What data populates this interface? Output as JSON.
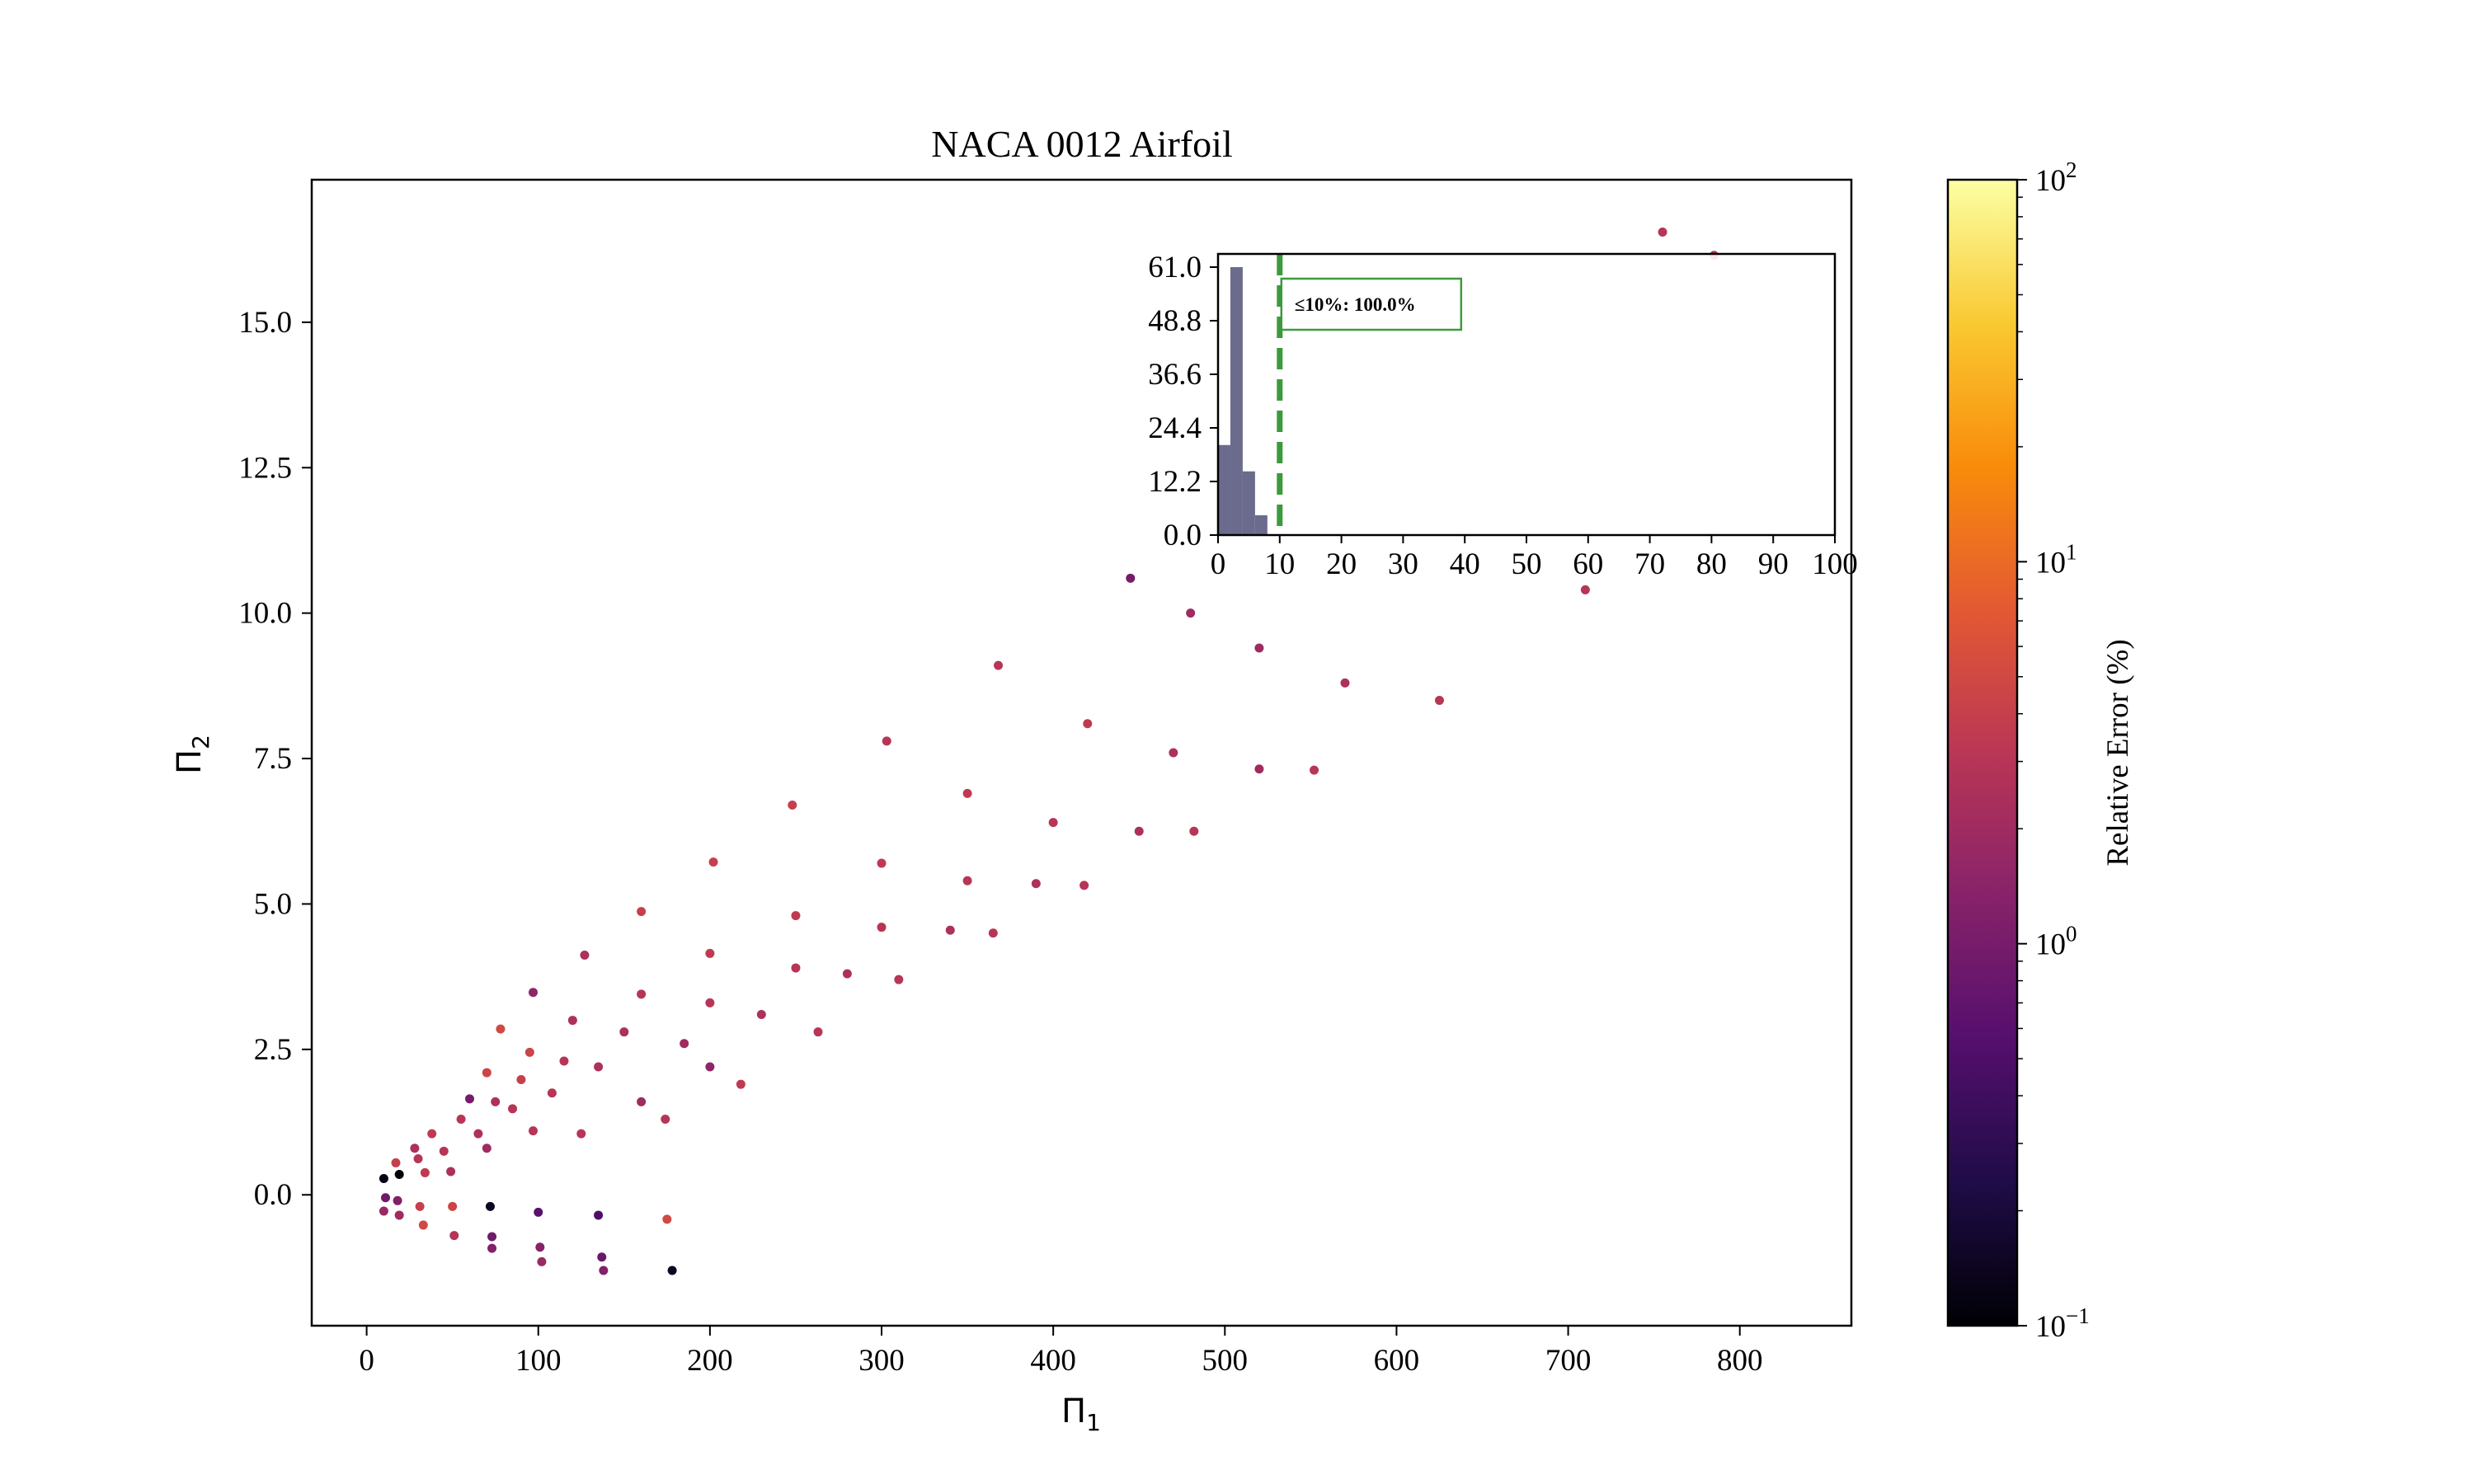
{
  "chart_data": {
    "type": "scatter",
    "title": "NACA 0012 Airfoil",
    "xlabel": "Π",
    "xlabel_sub": "1",
    "ylabel": "Π",
    "ylabel_sub": "2",
    "xlim": [
      -32,
      865
    ],
    "ylim": [
      -2.25,
      17.45
    ],
    "xticks": [
      "0",
      "100",
      "200",
      "300",
      "400",
      "500",
      "600",
      "700",
      "800"
    ],
    "xtick_values": [
      0,
      100,
      200,
      300,
      400,
      500,
      600,
      700,
      800
    ],
    "yticks": [
      "0.0",
      "2.5",
      "5.0",
      "7.5",
      "10.0",
      "12.5",
      "15.0"
    ],
    "ytick_values": [
      0,
      2.5,
      5,
      7.5,
      10,
      12.5,
      15
    ],
    "grid": false,
    "colormap": "inferno",
    "colorbar": {
      "label": "Relative Error (%)",
      "scale": "log",
      "range": [
        0.1,
        100
      ],
      "tick_bases": [
        "10",
        "10",
        "10",
        "10"
      ],
      "tick_exponents": [
        "−1",
        "0",
        "1",
        "2"
      ],
      "tick_values": [
        0.1,
        1,
        10,
        100
      ]
    },
    "series": [
      {
        "points": [
          [
            10,
            0.28,
            0.12
          ],
          [
            11,
            -0.05,
            0.9
          ],
          [
            10,
            -0.28,
            1.8
          ],
          [
            17,
            0.55,
            4
          ],
          [
            19,
            0.35,
            0.1
          ],
          [
            18,
            -0.1,
            1.2
          ],
          [
            19,
            -0.35,
            2
          ],
          [
            28,
            0.8,
            2.5
          ],
          [
            30,
            0.62,
            3
          ],
          [
            34,
            0.38,
            3.5
          ],
          [
            31,
            -0.2,
            4
          ],
          [
            33,
            -0.52,
            5
          ],
          [
            38,
            1.05,
            3.5
          ],
          [
            45,
            0.75,
            3
          ],
          [
            49,
            0.4,
            2.5
          ],
          [
            50,
            -0.2,
            4.5
          ],
          [
            51,
            -0.7,
            3
          ],
          [
            55,
            1.3,
            3
          ],
          [
            65,
            1.05,
            2.5
          ],
          [
            70,
            0.8,
            2
          ],
          [
            72,
            -0.2,
            0.15
          ],
          [
            73,
            -0.72,
            0.9
          ],
          [
            73,
            -0.92,
            1.2
          ],
          [
            60,
            1.65,
            1
          ],
          [
            75,
            1.6,
            2.5
          ],
          [
            85,
            1.48,
            3
          ],
          [
            97,
            1.1,
            3
          ],
          [
            100,
            -0.3,
            0.6
          ],
          [
            101,
            -0.9,
            1.3
          ],
          [
            102,
            -1.15,
            1.8
          ],
          [
            70,
            2.1,
            4.5
          ],
          [
            90,
            1.98,
            4
          ],
          [
            108,
            1.75,
            3
          ],
          [
            125,
            1.05,
            3
          ],
          [
            135,
            -0.35,
            0.5
          ],
          [
            137,
            -1.07,
            0.8
          ],
          [
            138,
            -1.3,
            1.2
          ],
          [
            78,
            2.85,
            5
          ],
          [
            95,
            2.45,
            4.5
          ],
          [
            115,
            2.3,
            3
          ],
          [
            135,
            2.2,
            2.5
          ],
          [
            160,
            1.6,
            2
          ],
          [
            174,
            1.3,
            3
          ],
          [
            175,
            -0.42,
            5
          ],
          [
            178,
            -1.3,
            0.15
          ],
          [
            97,
            3.48,
            1.5
          ],
          [
            120,
            3.0,
            2.5
          ],
          [
            150,
            2.8,
            2.5
          ],
          [
            185,
            2.6,
            2
          ],
          [
            200,
            2.2,
            1.5
          ],
          [
            218,
            1.9,
            3.5
          ],
          [
            127,
            4.12,
            2.5
          ],
          [
            160,
            3.45,
            3
          ],
          [
            200,
            3.3,
            3
          ],
          [
            230,
            3.1,
            2.5
          ],
          [
            263,
            2.8,
            3
          ],
          [
            160,
            4.87,
            4
          ],
          [
            200,
            4.15,
            3.5
          ],
          [
            250,
            3.9,
            3
          ],
          [
            280,
            3.8,
            2.5
          ],
          [
            310,
            3.7,
            3
          ],
          [
            202,
            5.72,
            4
          ],
          [
            250,
            4.8,
            3.5
          ],
          [
            300,
            4.6,
            3
          ],
          [
            340,
            4.55,
            2.5
          ],
          [
            365,
            4.5,
            3
          ],
          [
            248,
            6.7,
            4
          ],
          [
            300,
            5.7,
            3.5
          ],
          [
            350,
            5.4,
            3
          ],
          [
            390,
            5.35,
            2.5
          ],
          [
            418,
            5.32,
            3
          ],
          [
            303,
            7.8,
            3
          ],
          [
            350,
            6.9,
            3.5
          ],
          [
            400,
            6.4,
            3
          ],
          [
            450,
            6.25,
            2.5
          ],
          [
            482,
            6.25,
            3
          ],
          [
            368,
            9.1,
            3
          ],
          [
            420,
            8.1,
            3.5
          ],
          [
            470,
            7.6,
            2.5
          ],
          [
            520,
            7.32,
            2
          ],
          [
            552,
            7.3,
            3
          ],
          [
            445,
            10.6,
            1
          ],
          [
            480,
            10.0,
            2
          ],
          [
            520,
            9.4,
            2
          ],
          [
            570,
            8.8,
            2.5
          ],
          [
            625,
            8.5,
            3
          ],
          [
            710,
            10.4,
            3
          ],
          [
            755,
            16.55,
            3
          ],
          [
            785,
            16.15,
            2.5
          ]
        ]
      }
    ],
    "inset": {
      "type": "bar",
      "xlim": [
        0,
        100
      ],
      "ylim": [
        0,
        61
      ],
      "xticks": [
        "0",
        "10",
        "20",
        "30",
        "40",
        "50",
        "60",
        "70",
        "80",
        "90",
        "100"
      ],
      "xtick_values": [
        0,
        10,
        20,
        30,
        40,
        50,
        60,
        70,
        80,
        90,
        100
      ],
      "yticks": [
        "0.0",
        "12.2",
        "24.4",
        "36.6",
        "48.8",
        "61.0"
      ],
      "ytick_values": [
        0,
        12.2,
        24.4,
        36.6,
        48.8,
        61
      ],
      "bins": [
        [
          0,
          2,
          20.5
        ],
        [
          2,
          4,
          61
        ],
        [
          4,
          6,
          14.5
        ],
        [
          6,
          8,
          4.5
        ]
      ],
      "bar_color": "#6b6b8e",
      "threshold": 10,
      "threshold_color": "#3c9a3c",
      "annotation": "≤10%: 100.0%"
    }
  }
}
